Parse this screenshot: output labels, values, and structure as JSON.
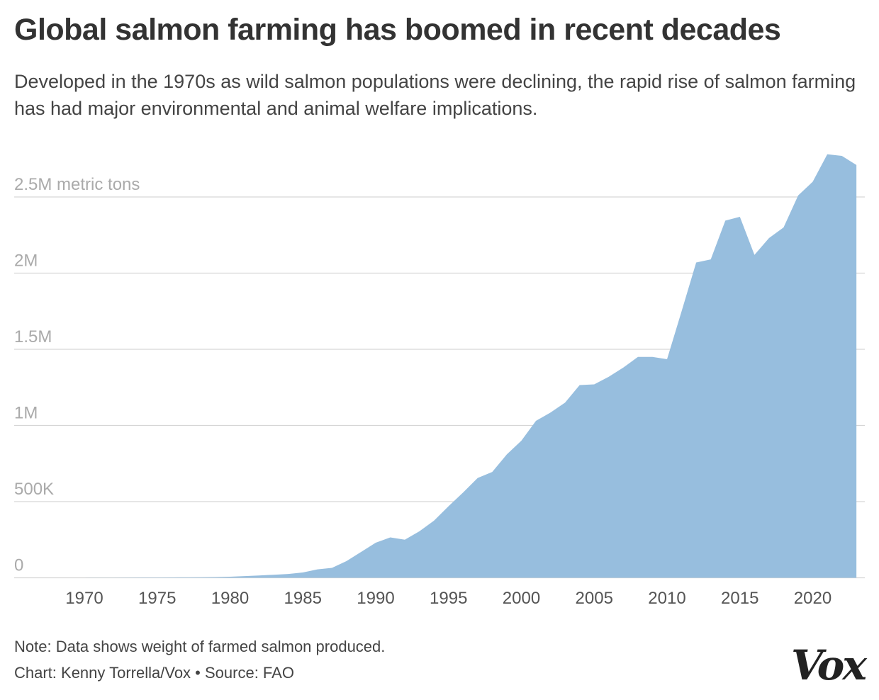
{
  "title": "Global salmon farming has boomed in recent decades",
  "subtitle": "Developed in the 1970s as wild salmon populations were declining, the rapid rise of salmon farming has had major environmental and animal welfare implications.",
  "note": "Note: Data shows weight of farmed salmon produced.",
  "credit": "Chart: Kenny Torrella/Vox • Source: FAO",
  "logo": "Vox",
  "colors": {
    "area": "#97bede",
    "grid": "#d6d6d6",
    "tick_text": "#aaaaaa",
    "axis_text": "#555555"
  },
  "chart_data": {
    "type": "area",
    "title": "Global salmon farming has boomed in recent decades",
    "xlabel": "",
    "ylabel": "metric tons",
    "xlim": [
      1966,
      2024
    ],
    "ylim": [
      0,
      2800000
    ],
    "grid": true,
    "y_ticks": [
      {
        "value": 0,
        "label": "0"
      },
      {
        "value": 500000,
        "label": "500K"
      },
      {
        "value": 1000000,
        "label": "1M"
      },
      {
        "value": 1500000,
        "label": "1.5M"
      },
      {
        "value": 2000000,
        "label": "2M"
      },
      {
        "value": 2500000,
        "label": "2.5M metric tons"
      }
    ],
    "x_ticks": [
      {
        "value": 1970,
        "label": "1970"
      },
      {
        "value": 1975,
        "label": "1975"
      },
      {
        "value": 1980,
        "label": "1980"
      },
      {
        "value": 1985,
        "label": "1985"
      },
      {
        "value": 1990,
        "label": "1990"
      },
      {
        "value": 1995,
        "label": "1995"
      },
      {
        "value": 2000,
        "label": "2000"
      },
      {
        "value": 2005,
        "label": "2005"
      },
      {
        "value": 2010,
        "label": "2010"
      },
      {
        "value": 2015,
        "label": "2015"
      },
      {
        "value": 2020,
        "label": "2020"
      }
    ],
    "series": [
      {
        "name": "Farmed salmon produced",
        "x": [
          1970,
          1971,
          1972,
          1973,
          1974,
          1975,
          1976,
          1977,
          1978,
          1979,
          1980,
          1981,
          1982,
          1983,
          1984,
          1985,
          1986,
          1987,
          1988,
          1989,
          1990,
          1991,
          1992,
          1993,
          1994,
          1995,
          1996,
          1997,
          1998,
          1999,
          2000,
          2001,
          2002,
          2003,
          2004,
          2005,
          2006,
          2007,
          2008,
          2009,
          2010,
          2011,
          2012,
          2013,
          2014,
          2015,
          2016,
          2017,
          2018,
          2019,
          2020,
          2021,
          2022,
          2023
        ],
        "values": [
          300,
          500,
          700,
          1000,
          1500,
          2000,
          2500,
          3000,
          3500,
          4500,
          7000,
          11000,
          15000,
          20000,
          25000,
          35000,
          55000,
          65000,
          110000,
          170000,
          230000,
          265000,
          250000,
          305000,
          375000,
          470000,
          560000,
          655000,
          695000,
          810000,
          900000,
          1030000,
          1085000,
          1150000,
          1265000,
          1270000,
          1320000,
          1380000,
          1450000,
          1450000,
          1435000,
          1750000,
          2070000,
          2090000,
          2345000,
          2370000,
          2120000,
          2230000,
          2300000,
          2510000,
          2600000,
          2780000,
          2770000,
          2710000
        ]
      }
    ]
  }
}
